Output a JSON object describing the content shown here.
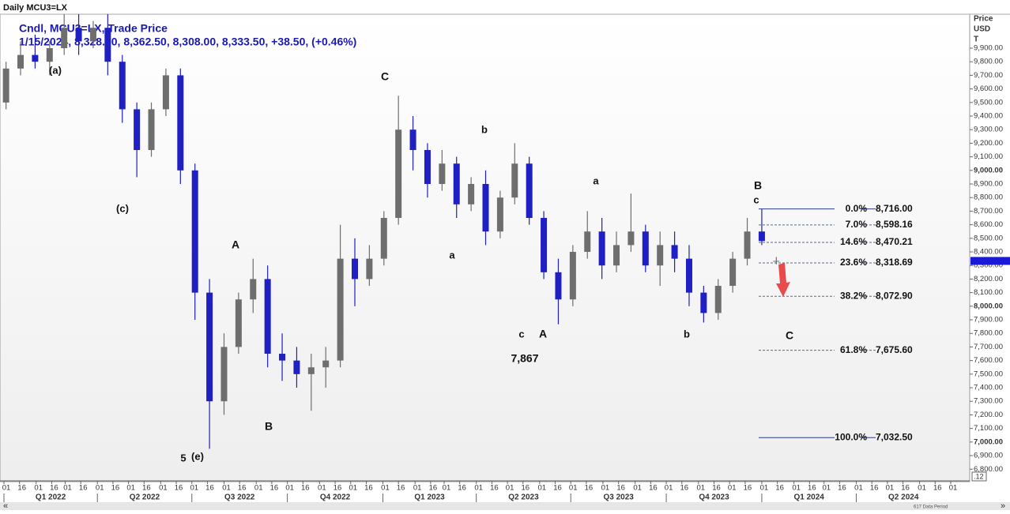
{
  "chart_data": {
    "type": "candlestick",
    "title": "Daily MCU3=LX",
    "subtitle": "Cndl, MCU3=LX, Trade Price",
    "legend_text": "1/15/2024, 8,328.00, 8,362.50, 8,308.00, 8,333.50, +38.50, (+0.46%)",
    "y_axis_header": [
      "Price",
      "USD",
      "T"
    ],
    "up_color": "#6e6e6e",
    "down_color": "#1f1fc4",
    "last_price_color": "#1a1ad6",
    "x": [
      "2022-01-03",
      "2022-01-17",
      "2022-01-31",
      "2022-02-14",
      "2022-02-28",
      "2022-03-14",
      "2022-03-28",
      "2022-04-11",
      "2022-04-25",
      "2022-05-09",
      "2022-05-23",
      "2022-06-06",
      "2022-06-20",
      "2022-07-04",
      "2022-07-18",
      "2022-08-01",
      "2022-08-15",
      "2022-08-29",
      "2022-09-12",
      "2022-09-26",
      "2022-10-10",
      "2022-10-24",
      "2022-11-07",
      "2022-11-21",
      "2022-12-05",
      "2022-12-19",
      "2023-01-02",
      "2023-01-16",
      "2023-01-30",
      "2023-02-13",
      "2023-02-27",
      "2023-03-13",
      "2023-03-27",
      "2023-04-10",
      "2023-04-24",
      "2023-05-08",
      "2023-05-22",
      "2023-06-05",
      "2023-06-19",
      "2023-07-03",
      "2023-07-17",
      "2023-07-31",
      "2023-08-14",
      "2023-08-28",
      "2023-09-11",
      "2023-09-25",
      "2023-10-09",
      "2023-10-23",
      "2023-11-06",
      "2023-11-20",
      "2023-12-04",
      "2023-12-18",
      "2024-01-01",
      "2024-01-15"
    ],
    "open": [
      9500,
      9750,
      9850,
      9800,
      9900,
      10050,
      9950,
      10050,
      9800,
      9450,
      9150,
      9450,
      9700,
      9000,
      8100,
      7300,
      7700,
      8050,
      8200,
      7650,
      7600,
      7500,
      7550,
      7600,
      8350,
      8200,
      8350,
      8650,
      9300,
      9150,
      8900,
      9050,
      8750,
      8900,
      8550,
      8800,
      9050,
      8650,
      8250,
      8050,
      8400,
      8550,
      8300,
      8450,
      8550,
      8300,
      8450,
      8350,
      8100,
      7950,
      8150,
      8350,
      8550,
      8328
    ],
    "high": [
      9800,
      9950,
      10000,
      9950,
      10150,
      10150,
      10100,
      10150,
      9850,
      9500,
      9500,
      9750,
      9750,
      9050,
      8200,
      7800,
      8100,
      8350,
      8300,
      7800,
      7700,
      7650,
      7700,
      8600,
      8500,
      8450,
      8700,
      9550,
      9400,
      9200,
      9150,
      9100,
      8950,
      9000,
      8850,
      9200,
      9100,
      8700,
      8350,
      8450,
      8700,
      8650,
      8550,
      8830,
      8600,
      8550,
      8550,
      8450,
      8150,
      8200,
      8400,
      8650,
      8716,
      8362.5
    ],
    "low": [
      9450,
      9700,
      9750,
      9700,
      9850,
      9850,
      9900,
      9700,
      9350,
      8950,
      9100,
      9400,
      8900,
      7900,
      6950,
      7200,
      7650,
      7950,
      7550,
      7450,
      7400,
      7230,
      7400,
      7550,
      8000,
      8150,
      8300,
      8600,
      9000,
      8800,
      8850,
      8650,
      8700,
      8450,
      8500,
      8750,
      8600,
      8200,
      7867,
      8000,
      8350,
      8200,
      8250,
      8400,
      8250,
      8150,
      8250,
      8000,
      7880,
      7900,
      8100,
      8300,
      8450,
      8308
    ],
    "close": [
      9750,
      9850,
      9800,
      9900,
      10050,
      9950,
      10050,
      9800,
      9450,
      9150,
      9450,
      9700,
      9000,
      8100,
      7300,
      7700,
      8050,
      8200,
      7650,
      7600,
      7500,
      7550,
      7600,
      8350,
      8200,
      8350,
      8650,
      9300,
      9150,
      8900,
      9050,
      8750,
      8900,
      8550,
      8800,
      9050,
      8650,
      8250,
      8050,
      8400,
      8550,
      8300,
      8450,
      8550,
      8300,
      8450,
      8350,
      8100,
      7950,
      8150,
      8350,
      8550,
      8480,
      8333.5
    ],
    "xlim": [
      "2022-01-01",
      "2024-07-01"
    ],
    "ylim": [
      6720,
      10150
    ],
    "yticks": [
      {
        "value": 6800,
        "label": "6,800.00"
      },
      {
        "value": 6900,
        "label": "6,900.00"
      },
      {
        "value": 7000,
        "label": "7,000.00"
      },
      {
        "value": 7100,
        "label": "7,100.00"
      },
      {
        "value": 7200,
        "label": "7,200.00"
      },
      {
        "value": 7300,
        "label": "7,300.00"
      },
      {
        "value": 7400,
        "label": "7,400.00"
      },
      {
        "value": 7500,
        "label": "7,500.00"
      },
      {
        "value": 7600,
        "label": "7,600.00"
      },
      {
        "value": 7700,
        "label": "7,700.00"
      },
      {
        "value": 7800,
        "label": "7,800.00"
      },
      {
        "value": 7900,
        "label": "7,900.00"
      },
      {
        "value": 8000,
        "label": "8,000.00"
      },
      {
        "value": 8100,
        "label": "8,100.00"
      },
      {
        "value": 8200,
        "label": "8,200.00"
      },
      {
        "value": 8300,
        "label": "8,300.00"
      },
      {
        "value": 8400,
        "label": "8,400.00"
      },
      {
        "value": 8500,
        "label": "8,500.00"
      },
      {
        "value": 8600,
        "label": "8,600.00"
      },
      {
        "value": 8700,
        "label": "8,700.00"
      },
      {
        "value": 8800,
        "label": "8,800.00"
      },
      {
        "value": 8900,
        "label": "8,900.00"
      },
      {
        "value": 9000,
        "label": "9,000.00"
      },
      {
        "value": 9100,
        "label": "9,100.00"
      },
      {
        "value": 9200,
        "label": "9,200.00"
      },
      {
        "value": 9300,
        "label": "9,300.00"
      },
      {
        "value": 9400,
        "label": "9,400.00"
      },
      {
        "value": 9500,
        "label": "9,500.00"
      },
      {
        "value": 9600,
        "label": "9,600.00"
      },
      {
        "value": 9700,
        "label": "9,700.00"
      },
      {
        "value": 9800,
        "label": "9,800.00"
      },
      {
        "value": 9900,
        "label": "9,900.00"
      }
    ],
    "xticks": [
      {
        "value": "2022-01-01",
        "label": "01"
      },
      {
        "value": "2022-01-16",
        "label": "16"
      },
      {
        "value": "2022-02-01",
        "label": "01"
      },
      {
        "value": "2022-02-16",
        "label": "16"
      },
      {
        "value": "2022-03-01",
        "label": "01"
      },
      {
        "value": "2022-03-16",
        "label": "16"
      },
      {
        "value": "2022-04-01",
        "label": "01"
      },
      {
        "value": "2022-04-16",
        "label": "16"
      },
      {
        "value": "2022-05-01",
        "label": "01"
      },
      {
        "value": "2022-05-16",
        "label": "16"
      },
      {
        "value": "2022-06-01",
        "label": "01"
      },
      {
        "value": "2022-06-16",
        "label": "16"
      },
      {
        "value": "2022-07-01",
        "label": "01"
      },
      {
        "value": "2022-07-16",
        "label": "16"
      },
      {
        "value": "2022-08-01",
        "label": "01"
      },
      {
        "value": "2022-08-16",
        "label": "16"
      },
      {
        "value": "2022-09-01",
        "label": "01"
      },
      {
        "value": "2022-09-16",
        "label": "16"
      },
      {
        "value": "2022-10-01",
        "label": "01"
      },
      {
        "value": "2022-10-16",
        "label": "16"
      },
      {
        "value": "2022-11-01",
        "label": "01"
      },
      {
        "value": "2022-11-16",
        "label": "16"
      },
      {
        "value": "2022-12-01",
        "label": "01"
      },
      {
        "value": "2022-12-16",
        "label": "16"
      },
      {
        "value": "2023-01-01",
        "label": "01"
      },
      {
        "value": "2023-01-16",
        "label": "16"
      },
      {
        "value": "2023-02-01",
        "label": "01"
      },
      {
        "value": "2023-02-16",
        "label": "16"
      },
      {
        "value": "2023-03-01",
        "label": "01"
      },
      {
        "value": "2023-03-16",
        "label": "16"
      },
      {
        "value": "2023-04-01",
        "label": "01"
      },
      {
        "value": "2023-04-16",
        "label": "16"
      },
      {
        "value": "2023-05-01",
        "label": "01"
      },
      {
        "value": "2023-05-16",
        "label": "16"
      },
      {
        "value": "2023-06-01",
        "label": "01"
      },
      {
        "value": "2023-06-16",
        "label": "16"
      },
      {
        "value": "2023-07-01",
        "label": "01"
      },
      {
        "value": "2023-07-16",
        "label": "16"
      },
      {
        "value": "2023-08-01",
        "label": "01"
      },
      {
        "value": "2023-08-16",
        "label": "16"
      },
      {
        "value": "2023-09-01",
        "label": "01"
      },
      {
        "value": "2023-09-16",
        "label": "16"
      },
      {
        "value": "2023-10-01",
        "label": "01"
      },
      {
        "value": "2023-10-16",
        "label": "16"
      },
      {
        "value": "2023-11-01",
        "label": "01"
      },
      {
        "value": "2023-11-16",
        "label": "16"
      },
      {
        "value": "2023-12-01",
        "label": "01"
      },
      {
        "value": "2023-12-16",
        "label": "16"
      },
      {
        "value": "2024-01-01",
        "label": "01"
      },
      {
        "value": "2024-01-16",
        "label": "16"
      },
      {
        "value": "2024-02-01",
        "label": "01"
      },
      {
        "value": "2024-02-16",
        "label": "16"
      },
      {
        "value": "2024-03-01",
        "label": "01"
      },
      {
        "value": "2024-03-16",
        "label": "16"
      },
      {
        "value": "2024-04-01",
        "label": "01"
      },
      {
        "value": "2024-04-16",
        "label": "16"
      },
      {
        "value": "2024-05-01",
        "label": "01"
      },
      {
        "value": "2024-05-16",
        "label": "16"
      },
      {
        "value": "2024-06-01",
        "label": "01"
      },
      {
        "value": "2024-06-16",
        "label": "16"
      },
      {
        "value": "2024-07-01",
        "label": "01"
      }
    ],
    "quarters": [
      {
        "value": "2022-01-01",
        "label": "Q1 2022"
      },
      {
        "value": "2022-04-01",
        "label": "Q2 2022"
      },
      {
        "value": "2022-07-01",
        "label": "Q3 2022"
      },
      {
        "value": "2022-10-01",
        "label": "Q4 2022"
      },
      {
        "value": "2023-01-01",
        "label": "Q1 2023"
      },
      {
        "value": "2023-04-01",
        "label": "Q2 2023"
      },
      {
        "value": "2023-07-01",
        "label": "Q3 2023"
      },
      {
        "value": "2023-10-01",
        "label": "Q4 2023"
      },
      {
        "value": "2024-01-01",
        "label": "Q1 2024"
      },
      {
        "value": "2024-04-01",
        "label": "Q2 2024"
      }
    ],
    "fib_levels": [
      {
        "pct": {
          "value": 0,
          "label": "0.0%"
        },
        "price": {
          "value": 8716,
          "label": "8,716.00"
        }
      },
      {
        "pct": {
          "value": 7,
          "label": "7.0%"
        },
        "price": {
          "value": 8598.16,
          "label": "8,598.16"
        }
      },
      {
        "pct": {
          "value": 14.6,
          "label": "14.6%"
        },
        "price": {
          "value": 8470.21,
          "label": "8,470.21"
        }
      },
      {
        "pct": {
          "value": 23.6,
          "label": "23.6%"
        },
        "price": {
          "value": 8318.69,
          "label": "8,318.69"
        }
      },
      {
        "pct": {
          "value": 38.2,
          "label": "38.2%"
        },
        "price": {
          "value": 8072.9,
          "label": "8,072.90"
        }
      },
      {
        "pct": {
          "value": 61.8,
          "label": "61.8%"
        },
        "price": {
          "value": 7675.6,
          "label": "7,675.60"
        }
      },
      {
        "pct": {
          "value": 100,
          "label": "100.0%"
        },
        "price": {
          "value": 7032.5,
          "label": "7,032.50"
        }
      }
    ],
    "annotations": [
      "(a)",
      "(c)",
      "5",
      "(e)",
      "A",
      "B",
      "C",
      "b",
      "a",
      "c",
      "A",
      "7,867",
      "a",
      "b",
      "B",
      "c",
      "C"
    ],
    "footer": [
      "617 Data Period",
      ".12",
      "«",
      "»"
    ]
  }
}
